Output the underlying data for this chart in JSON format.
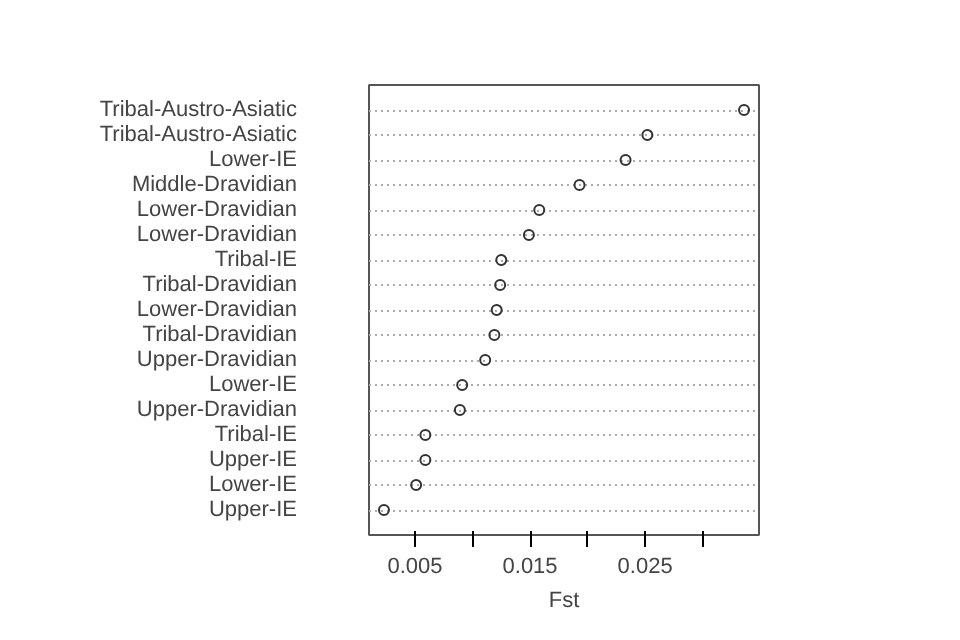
{
  "chart_data": {
    "type": "scatter",
    "xlabel": "Fst",
    "categories": [
      "Tribal-Austro-Asiatic",
      "Tribal-Austro-Asiatic",
      "Lower-IE",
      "Middle-Dravidian",
      "Lower-Dravidian",
      "Lower-Dravidian",
      "Tribal-IE",
      "Tribal-Dravidian",
      "Lower-Dravidian",
      "Tribal-Dravidian",
      "Upper-Dravidian",
      "Lower-IE",
      "Upper-Dravidian",
      "Tribal-IE",
      "Upper-IE",
      "Lower-IE",
      "Upper-IE"
    ],
    "values": [
      0.0336,
      0.0252,
      0.0233,
      0.0193,
      0.0158,
      0.0149,
      0.0125,
      0.0124,
      0.0121,
      0.0119,
      0.0111,
      0.0091,
      0.0089,
      0.0059,
      0.0059,
      0.0051,
      0.0023
    ],
    "orientation": "horizontal",
    "color": "#333333",
    "marker": "circle",
    "grid": "y",
    "xlim": [
      0.001,
      0.0349
    ],
    "xticks": [
      0.005,
      {
        "value": 0.01,
        "label": null
      },
      0.015,
      {
        "value": 0.02,
        "label": null
      },
      0.025,
      {
        "value": 0.03,
        "label": null
      }
    ]
  }
}
